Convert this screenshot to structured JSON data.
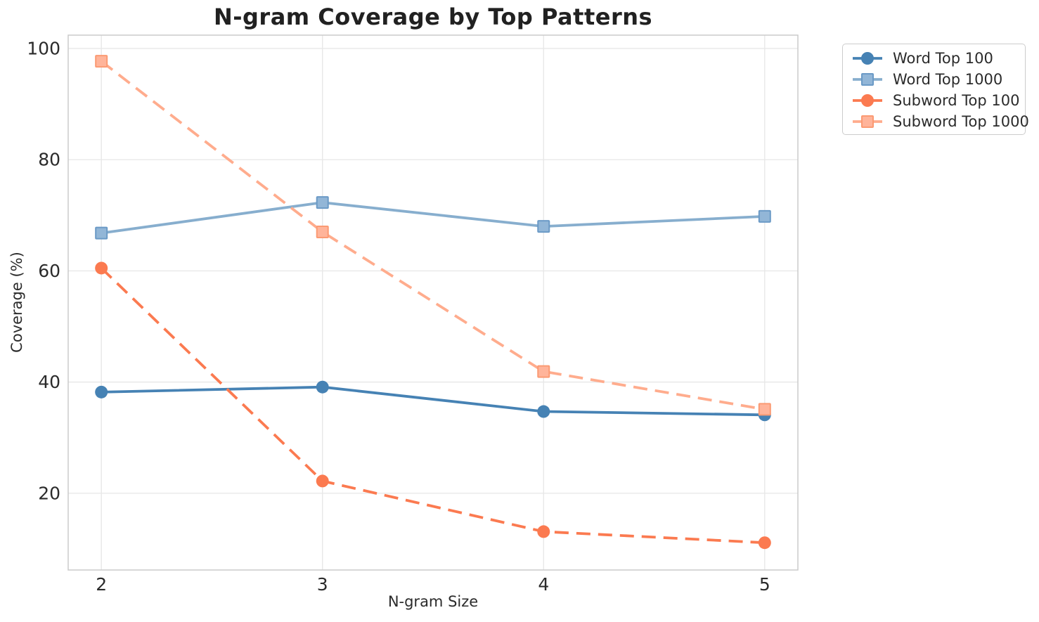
{
  "chart_data": {
    "type": "line",
    "title": "N-gram Coverage by Top Patterns",
    "xlabel": "N-gram Size",
    "ylabel": "Coverage (%)",
    "x": [
      2,
      3,
      4,
      5
    ],
    "xtick_labels": [
      "2",
      "3",
      "4",
      "5"
    ],
    "ytick_values": [
      20,
      40,
      60,
      80,
      100
    ],
    "ytick_labels": [
      "20",
      "40",
      "60",
      "80",
      "100"
    ],
    "xlim": [
      1.85,
      5.15
    ],
    "ylim": [
      6.2,
      102.4
    ],
    "grid": true,
    "background": "#ffffff",
    "grid_color": "#e8e8e8",
    "spine_color": "#cbcbcb",
    "text_color": "#2b2b2b",
    "legend_position": "outside upper right",
    "series": [
      {
        "name": "Word Top 100",
        "color": "#4682b4",
        "marker": "circle",
        "marker_fill": "#4682b4",
        "marker_edge": "#4682b4",
        "linestyle": "solid",
        "values": [
          38.2,
          39.1,
          34.7,
          34.1
        ]
      },
      {
        "name": "Word Top 1000",
        "color": "#87aece",
        "marker": "square",
        "marker_fill": "#92b6d7",
        "marker_edge": "#6b9ac6",
        "linestyle": "solid",
        "values": [
          66.8,
          72.3,
          68.0,
          69.8
        ]
      },
      {
        "name": "Subword Top 100",
        "color": "#fb7a50",
        "marker": "circle",
        "marker_fill": "#fb7a50",
        "marker_edge": "#fb7a50",
        "linestyle": "dashed",
        "values": [
          60.5,
          22.2,
          13.1,
          11.1
        ]
      },
      {
        "name": "Subword Top 1000",
        "color": "#ffac8d",
        "marker": "square",
        "marker_fill": "#ffb49a",
        "marker_edge": "#fb9a73",
        "linestyle": "dashed",
        "values": [
          97.7,
          67.0,
          41.9,
          35.1
        ]
      }
    ]
  }
}
